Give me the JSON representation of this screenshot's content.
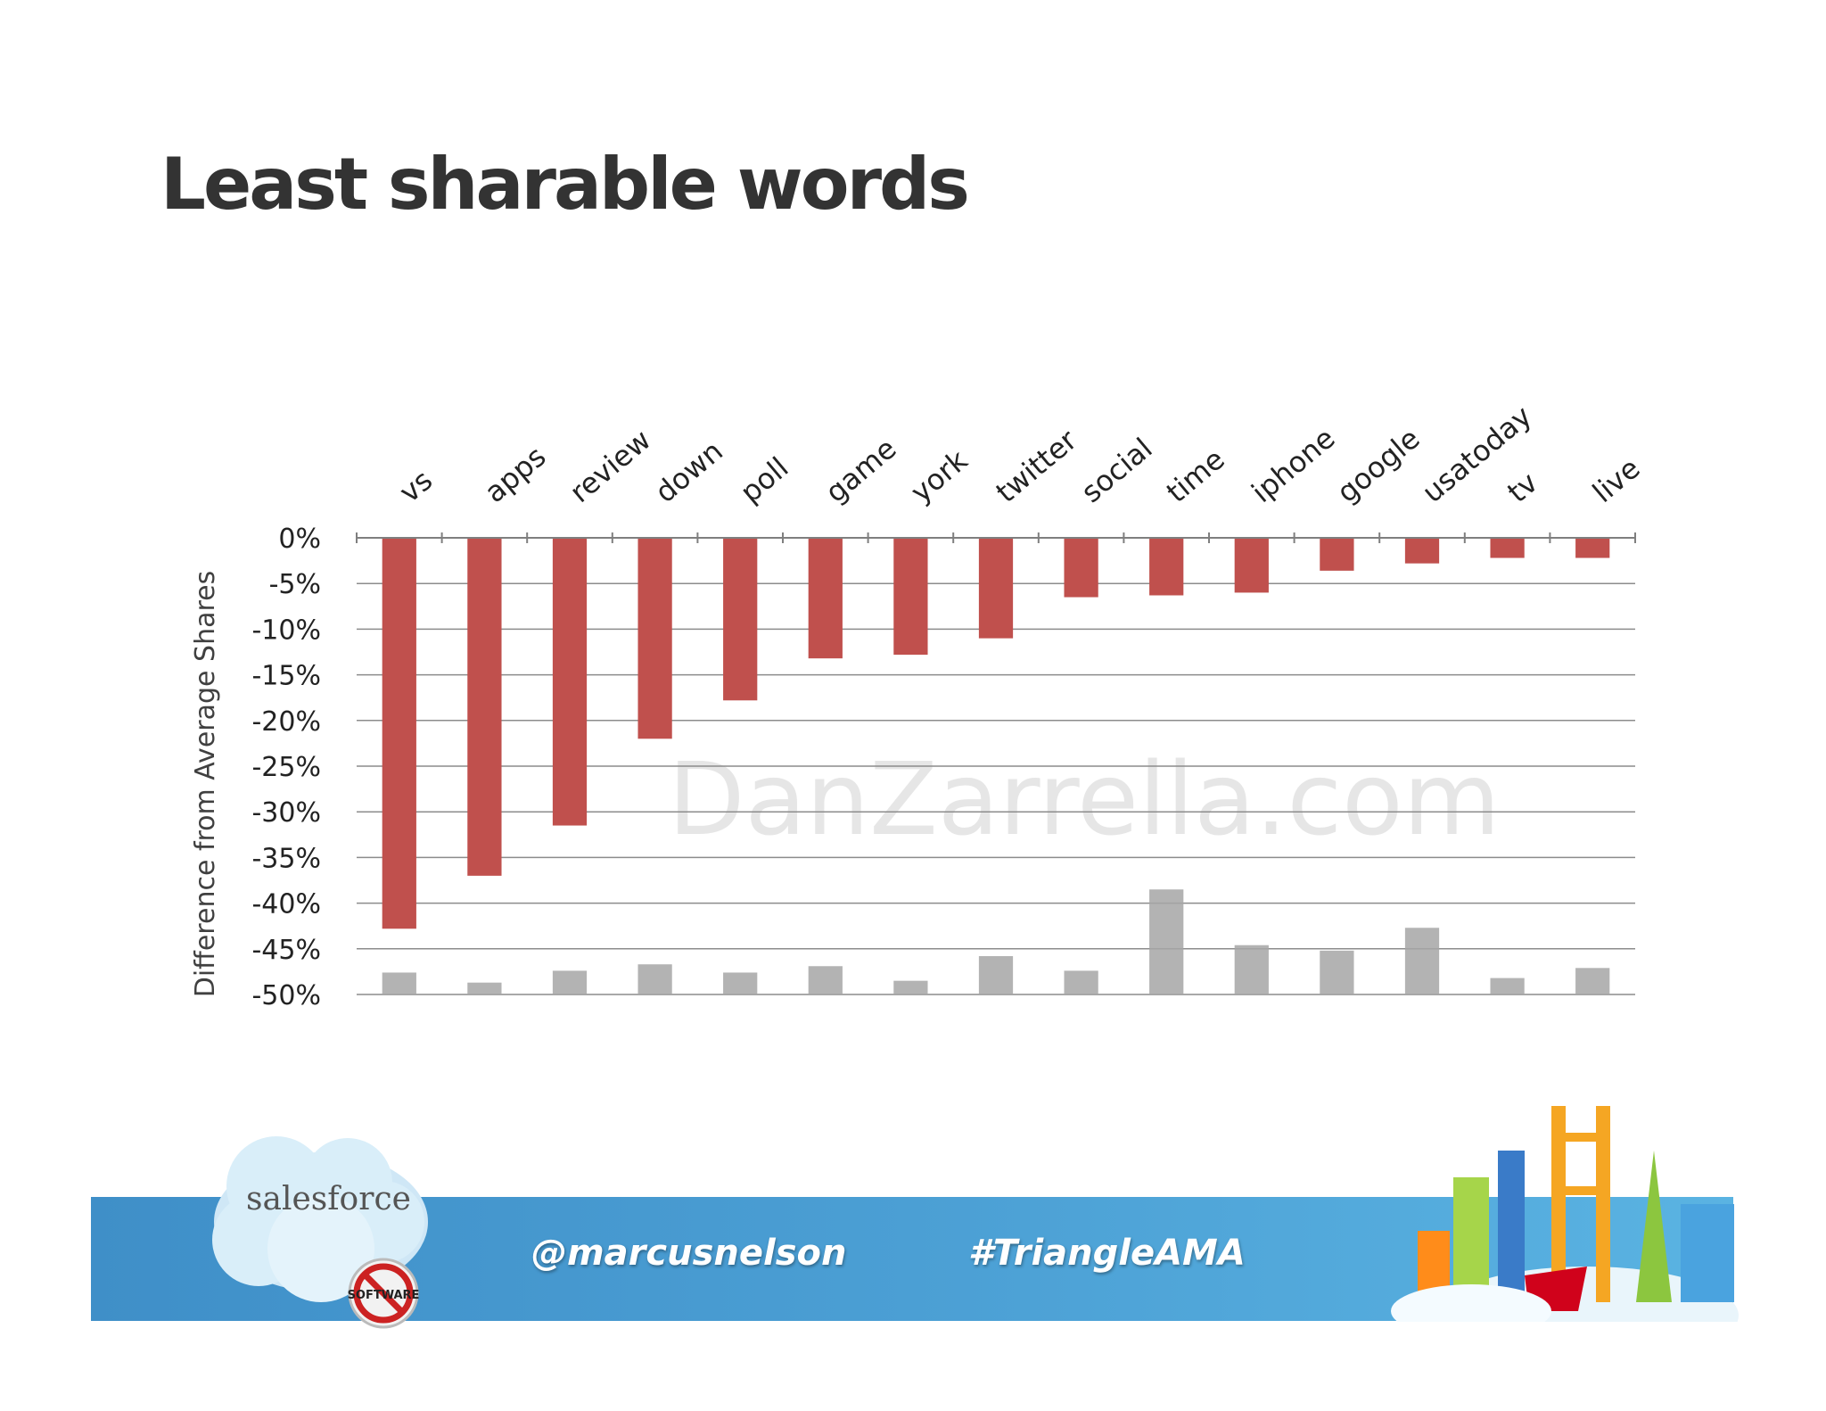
{
  "slide": {
    "title": "Least sharable words",
    "footer_handle": "@marcusnelson",
    "footer_hashtag": "#TriangleAMA",
    "watermark": "DanZarrella.com",
    "logo_text": "salesforce",
    "badge_text": "SOFTWARE"
  },
  "colors": {
    "bar": "#c0504d",
    "shadow_bar": "#a6a6a6",
    "gridline": "#8c8c8c",
    "footer_band": "#4b9fd4",
    "title": "#333333"
  },
  "chart_data": {
    "type": "bar",
    "title": "",
    "xlabel": "",
    "ylabel": "Difference from Average Shares",
    "ylim": [
      -50,
      0
    ],
    "y_ticks": [
      "0%",
      "-5%",
      "-10%",
      "-15%",
      "-20%",
      "-25%",
      "-30%",
      "-35%",
      "-40%",
      "-45%",
      "-50%"
    ],
    "y_tick_values": [
      0,
      -5,
      -10,
      -15,
      -20,
      -25,
      -30,
      -35,
      -40,
      -45,
      -50
    ],
    "grid": true,
    "categories": [
      "vs",
      "apps",
      "review",
      "down",
      "poll",
      "game",
      "york",
      "twitter",
      "social",
      "time",
      "iphone",
      "google",
      "usatoday",
      "tv",
      "live"
    ],
    "values": [
      -42.8,
      -37.0,
      -31.5,
      -22.0,
      -17.8,
      -13.2,
      -12.8,
      -11.0,
      -6.5,
      -6.3,
      -6.0,
      -3.6,
      -2.8,
      -2.2,
      -2.2
    ],
    "reflection_values": [
      2.4,
      1.3,
      2.6,
      3.3,
      2.4,
      3.1,
      1.5,
      4.2,
      2.6,
      11.5,
      5.4,
      4.8,
      7.3,
      1.8,
      2.9
    ]
  }
}
